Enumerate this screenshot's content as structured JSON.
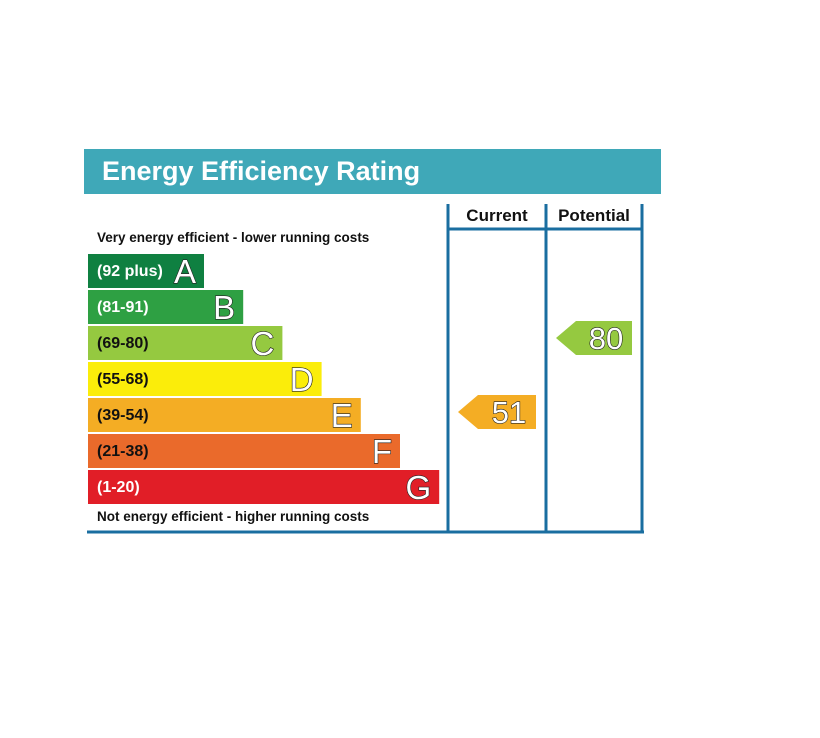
{
  "chart_data": {
    "type": "bar",
    "title": "Energy Efficiency Rating",
    "columns": [
      "Current",
      "Potential"
    ],
    "top_note": "Very energy efficient - lower running costs",
    "bottom_note": "Not energy efficient - higher running costs",
    "bands": [
      {
        "range": "(92 plus)",
        "letter": "A",
        "min": 92,
        "max": 100,
        "color": "#0f8041",
        "text_color": "#ffffff"
      },
      {
        "range": "(81-91)",
        "letter": "B",
        "min": 81,
        "max": 91,
        "color": "#2ea043",
        "text_color": "#ffffff"
      },
      {
        "range": "(69-80)",
        "letter": "C",
        "min": 69,
        "max": 80,
        "color": "#95c940",
        "text_color": "#111111"
      },
      {
        "range": "(55-68)",
        "letter": "D",
        "min": 55,
        "max": 68,
        "color": "#fbed0a",
        "text_color": "#111111"
      },
      {
        "range": "(39-54)",
        "letter": "E",
        "min": 39,
        "max": 54,
        "color": "#f4ad24",
        "text_color": "#111111"
      },
      {
        "range": "(21-38)",
        "letter": "F",
        "min": 21,
        "max": 38,
        "color": "#ea6a2b",
        "text_color": "#111111"
      },
      {
        "range": "(1-20)",
        "letter": "G",
        "min": 1,
        "max": 20,
        "color": "#e11e27",
        "text_color": "#ffffff"
      }
    ],
    "current": {
      "value": 51,
      "band": "E",
      "color": "#f4ad24"
    },
    "potential": {
      "value": 80,
      "band": "C",
      "color": "#95c940"
    }
  },
  "colors": {
    "title_bar": "#3fa8b8",
    "frame": "#1a6ea0",
    "title_text": "#ffffff"
  }
}
